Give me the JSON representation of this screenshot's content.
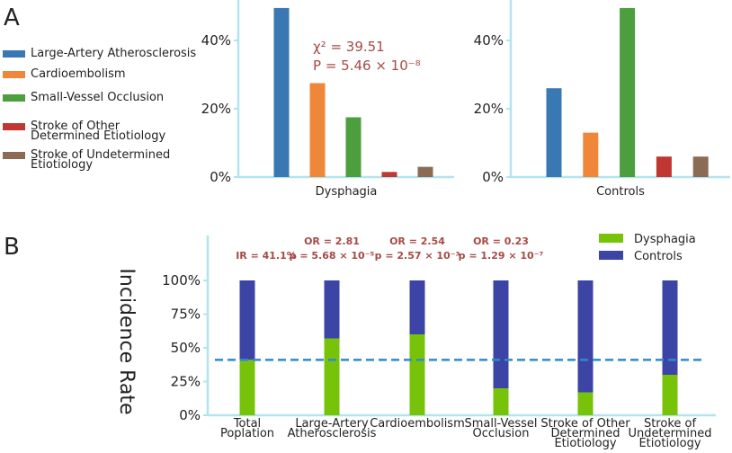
{
  "panel_a": {
    "letter": "A",
    "legend": [
      {
        "label": "Large-Artery Atherosclerosis",
        "color": "#3a78b4"
      },
      {
        "label": "Cardioembolism",
        "color": "#f0863a"
      },
      {
        "label": "Small-Vessel Occlusion",
        "color": "#4c9e3e"
      },
      {
        "label_lines": [
          "Stroke of Other",
          "Determined Etiotiology"
        ],
        "color": "#c03630"
      },
      {
        "label_lines": [
          "Stroke of Undetermined",
          "Etiotiology"
        ],
        "color": "#8c6b55"
      }
    ],
    "stat_chi": "χ² = 39.51",
    "stat_p": "P = 5.46 × 10⁻⁸"
  },
  "panel_b": {
    "letter": "B",
    "ylabel": "Incidence Rate",
    "legend": [
      {
        "label": "Dysphagia",
        "color": "#77c30a"
      },
      {
        "label": "Controls",
        "color": "#3c45a5"
      }
    ]
  },
  "chart_data": [
    {
      "type": "bar",
      "title": "",
      "xlabel": "Dysphagia",
      "ylabel": "",
      "ylim": [
        0,
        50
      ],
      "yticks": [
        "0%",
        "20%",
        "40%"
      ],
      "categories": [
        "Large-Artery Atherosclerosis",
        "Cardioembolism",
        "Small-Vessel Occlusion",
        "Stroke of Other Determined Etiotiology",
        "Stroke of Undetermined Etiotiology"
      ],
      "values": [
        49.5,
        27.5,
        17.5,
        1.5,
        3.0
      ],
      "colors": [
        "#3a78b4",
        "#f0863a",
        "#4c9e3e",
        "#c03630",
        "#8c6b55"
      ]
    },
    {
      "type": "bar",
      "title": "",
      "xlabel": "Controls",
      "ylabel": "",
      "ylim": [
        0,
        50
      ],
      "yticks": [
        "0%",
        "20%",
        "40%"
      ],
      "categories": [
        "Large-Artery Atherosclerosis",
        "Cardioembolism",
        "Small-Vessel Occlusion",
        "Stroke of Other Determined Etiotiology",
        "Stroke of Undetermined Etiotiology"
      ],
      "values": [
        26.0,
        13.0,
        49.5,
        6.0,
        6.0
      ],
      "colors": [
        "#3a78b4",
        "#f0863a",
        "#4c9e3e",
        "#c03630",
        "#8c6b55"
      ]
    },
    {
      "type": "bar",
      "stacked": true,
      "title": "",
      "xlabel": "",
      "ylabel": "Incidence Rate",
      "ylim": [
        0,
        100
      ],
      "yticks": [
        "0%",
        "25%",
        "50%",
        "75%",
        "100%"
      ],
      "reference_line": 41.1,
      "categories": [
        [
          "Total",
          "Poplation"
        ],
        [
          "Large-Artery",
          "Atherosclerosis"
        ],
        [
          "Cardioembolism"
        ],
        [
          "Small-Vessel",
          "Occlusion"
        ],
        [
          "Stroke of Other",
          "Determined",
          "Etiotiology"
        ],
        [
          "Stroke of",
          "Undetermined",
          "Etiotiology"
        ]
      ],
      "series": [
        {
          "name": "Dysphagia",
          "color": "#77c30a",
          "values": [
            41.1,
            57,
            60,
            20,
            17,
            30
          ]
        },
        {
          "name": "Controls",
          "color": "#3c45a5",
          "values": [
            58.9,
            43,
            40,
            80,
            83,
            70
          ]
        }
      ],
      "annotations": [
        [
          "IR = 41.1%"
        ],
        [
          "OR = 2.81",
          "p = 5.68 × 10⁻⁵"
        ],
        [
          "OR = 2.54",
          "p = 2.57 × 10⁻³"
        ],
        [
          "OR = 0.23",
          "p = 1.29 × 10⁻⁷"
        ],
        [],
        []
      ]
    }
  ]
}
